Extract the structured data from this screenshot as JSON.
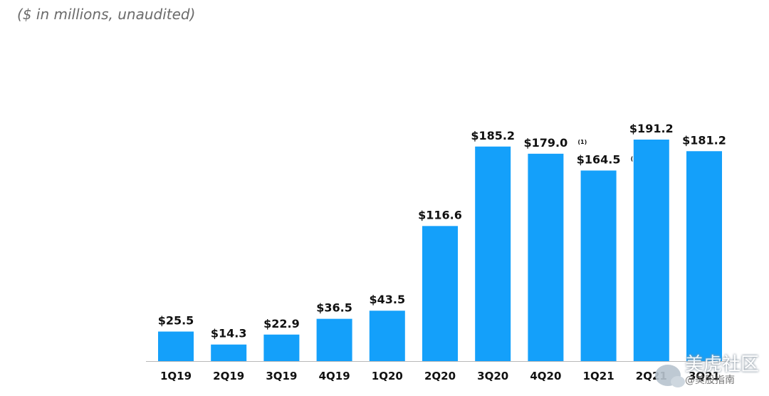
{
  "subtitle": "($ in millions,  unaudited)",
  "chart_data": {
    "type": "bar",
    "title": "",
    "xlabel": "",
    "ylabel": "",
    "ylim": [
      0,
      191.2
    ],
    "grid": false,
    "bar_color": "#14a0fa",
    "baseline_color": "#b8b8b8",
    "categories": [
      "1Q19",
      "2Q19",
      "3Q19",
      "4Q19",
      "1Q20",
      "2Q20",
      "3Q20",
      "4Q20",
      "1Q21",
      "2Q21",
      "3Q21"
    ],
    "values": [
      25.5,
      14.3,
      22.9,
      36.5,
      43.5,
      116.6,
      185.2,
      179.0,
      164.5,
      191.2,
      181.2
    ],
    "value_labels": [
      "$25.5",
      "$14.3",
      "$22.9",
      "$36.5",
      "$43.5",
      "$116.6",
      "$185.2",
      "$179.0",
      "$164.5",
      "$191.2",
      "$181.2"
    ],
    "notes": [
      "",
      "",
      "",
      "",
      "",
      "",
      "",
      "(1)",
      "(1)",
      "",
      ""
    ]
  },
  "watermark": {
    "line1": "美虎社区",
    "line2": "@美股指南",
    "icon": "wechat-icon"
  }
}
